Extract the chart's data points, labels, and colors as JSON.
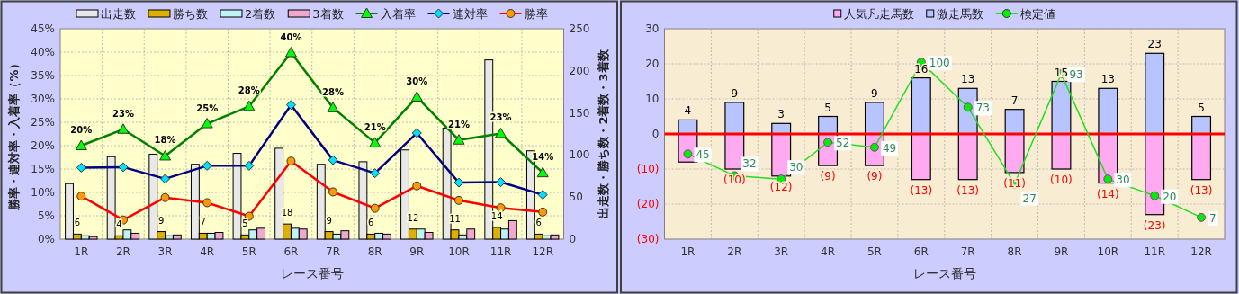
{
  "chart_data": [
    {
      "type": "bar",
      "xlabel": "レース番号",
      "ylabel": "勝率・連対率・入着率（%）",
      "y2label": "出走数・勝ち数・2着数・3着数",
      "categories": [
        "1R",
        "2R",
        "3R",
        "4R",
        "5R",
        "6R",
        "7R",
        "8R",
        "9R",
        "10R",
        "11R",
        "12R"
      ],
      "ylim": [
        0,
        45
      ],
      "yticks": [
        {
          "value": 0,
          "label": "0%"
        },
        {
          "value": 5,
          "label": "5%"
        },
        {
          "value": 10,
          "label": "10%"
        },
        {
          "value": 15,
          "label": "15%"
        },
        {
          "value": 20,
          "label": "20%"
        },
        {
          "value": 25,
          "label": "25%"
        },
        {
          "value": 30,
          "label": "30%"
        },
        {
          "value": 35,
          "label": "35%"
        },
        {
          "value": 40,
          "label": "40%"
        },
        {
          "value": 45,
          "label": "45%"
        }
      ],
      "y2lim": [
        0,
        250
      ],
      "y2ticks": [
        0,
        50,
        100,
        150,
        200,
        250
      ],
      "grid": true,
      "legend": "top",
      "series": [
        {
          "name": "出走数",
          "axis": "y2",
          "color": "#e8e8e8",
          "values": [
            66,
            98,
            101,
            89,
            102,
            108,
            89,
            92,
            106,
            132,
            213,
            105
          ]
        },
        {
          "name": "勝ち数",
          "axis": "y2",
          "color": "#e0b000",
          "values": [
            6,
            4,
            9,
            7,
            5,
            18,
            9,
            6,
            12,
            11,
            14,
            6
          ],
          "value_labels": [
            "6",
            "4",
            "9",
            "7",
            "5",
            "18",
            "9",
            "6",
            "12",
            "11",
            "14",
            "6"
          ]
        },
        {
          "name": "2着数",
          "axis": "y2",
          "color": "#bff4f4",
          "values": [
            4,
            11,
            4,
            7,
            11,
            13,
            6,
            7,
            12,
            5,
            12,
            4
          ]
        },
        {
          "name": "3着数",
          "axis": "y2",
          "color": "#f0a8d0",
          "values": [
            3,
            7,
            5,
            8,
            13,
            12,
            10,
            6,
            8,
            12,
            22,
            5
          ]
        },
        {
          "name": "入着率",
          "type": "line",
          "axis": "y",
          "color": "#008000",
          "marker": "triangle",
          "colors": [
            "#00ff00",
            "#00ff00",
            "#00ff00",
            "#00ff00",
            "#00ff00",
            "#00ff00",
            "#00ff00",
            "#00ff00",
            "#00ff00",
            "#00ff00",
            "#00ff00",
            "#00ff00"
          ],
          "values": [
            20.0,
            23.5,
            17.8,
            24.7,
            28.4,
            39.9,
            28.1,
            20.6,
            30.4,
            21.2,
            22.6,
            14.2
          ],
          "value_labels": [
            "20%",
            "23%",
            "18%",
            "25%",
            "28%",
            "40%",
            "28%",
            "21%",
            "30%",
            "21%",
            "23%",
            "14%"
          ]
        },
        {
          "name": "連対率",
          "type": "line",
          "axis": "y",
          "color": "#000080",
          "marker": "diamond",
          "colors": [
            "#00e0ff",
            "#00e0ff",
            "#00e0ff",
            "#00e0ff",
            "#00e0ff",
            "#00e0ff",
            "#00e0ff",
            "#00e0ff",
            "#00e0ff",
            "#00e0ff",
            "#00e0ff",
            "#00e0ff"
          ],
          "values": [
            15.3,
            15.4,
            12.9,
            15.7,
            15.7,
            28.7,
            16.9,
            14.1,
            22.7,
            12.1,
            12.2,
            9.5
          ]
        },
        {
          "name": "勝率",
          "type": "line",
          "axis": "y",
          "color": "#ff0000",
          "marker": "circle",
          "colors": [
            "#ff9900",
            "#ff9900",
            "#ff9900",
            "#ff9900",
            "#ff9900",
            "#ff9900",
            "#ff9900",
            "#ff9900",
            "#ff9900",
            "#ff9900",
            "#ff9900",
            "#ff9900"
          ],
          "values": [
            9.2,
            4.1,
            8.9,
            7.8,
            4.9,
            16.7,
            10.1,
            6.6,
            11.4,
            8.3,
            6.7,
            5.8
          ]
        }
      ]
    },
    {
      "type": "bar",
      "stacked": true,
      "xlabel": "レース番号",
      "categories": [
        "1R",
        "2R",
        "3R",
        "4R",
        "5R",
        "6R",
        "7R",
        "8R",
        "9R",
        "10R",
        "11R",
        "12R"
      ],
      "ylim": [
        -30,
        30
      ],
      "yticks": [
        {
          "value": -30,
          "label": "(30)"
        },
        {
          "value": -20,
          "label": "(20)"
        },
        {
          "value": -10,
          "label": "(10)"
        },
        0,
        10,
        20,
        30
      ],
      "y2lim": [
        -6,
        120
      ],
      "grid": true,
      "legend": "top",
      "ref_lines": [
        {
          "axis": "y",
          "value": 0,
          "color": "#ff0000"
        }
      ],
      "series": [
        {
          "name": "人気凡走馬数",
          "color": "#ffaaf0",
          "values": [
            -8,
            -10,
            -12,
            -9,
            -9,
            -13,
            -13,
            -11,
            -10,
            -14,
            -23,
            -13
          ],
          "value_labels": [
            null,
            "(10)",
            "(12)",
            "(9)",
            "(9)",
            "(13)",
            "(13)",
            "(11)",
            "(10)",
            "(14)",
            "(23)",
            "(13)"
          ]
        },
        {
          "name": "激走馬数",
          "color": "#b8c4ff",
          "values": [
            4,
            9,
            3,
            5,
            9,
            16,
            13,
            7,
            15,
            13,
            23,
            5
          ],
          "value_labels": [
            "4",
            "9",
            "3",
            "5",
            "9",
            "16",
            "13",
            "7",
            "15",
            "13",
            "23",
            "5"
          ]
        },
        {
          "name": "検定値",
          "type": "line",
          "axis": "y2",
          "color": "#22dd22",
          "marker": "circle",
          "colors": [
            "#00ee00",
            "#00ee00",
            "#00ee00",
            "#00ee00",
            "#00ee00",
            "#00ee00",
            "#00ee00",
            "#00ee00",
            "#00ee00",
            "#00ee00",
            "#00ee00",
            "#00ee00"
          ],
          "values": [
            45,
            32,
            30,
            52,
            49,
            100,
            73,
            27,
            93,
            30,
            20,
            7
          ],
          "value_labels": [
            "45",
            "32",
            "30",
            "52",
            "49",
            "100",
            "73",
            "27",
            "93",
            "30",
            "20",
            "7"
          ]
        }
      ]
    }
  ]
}
